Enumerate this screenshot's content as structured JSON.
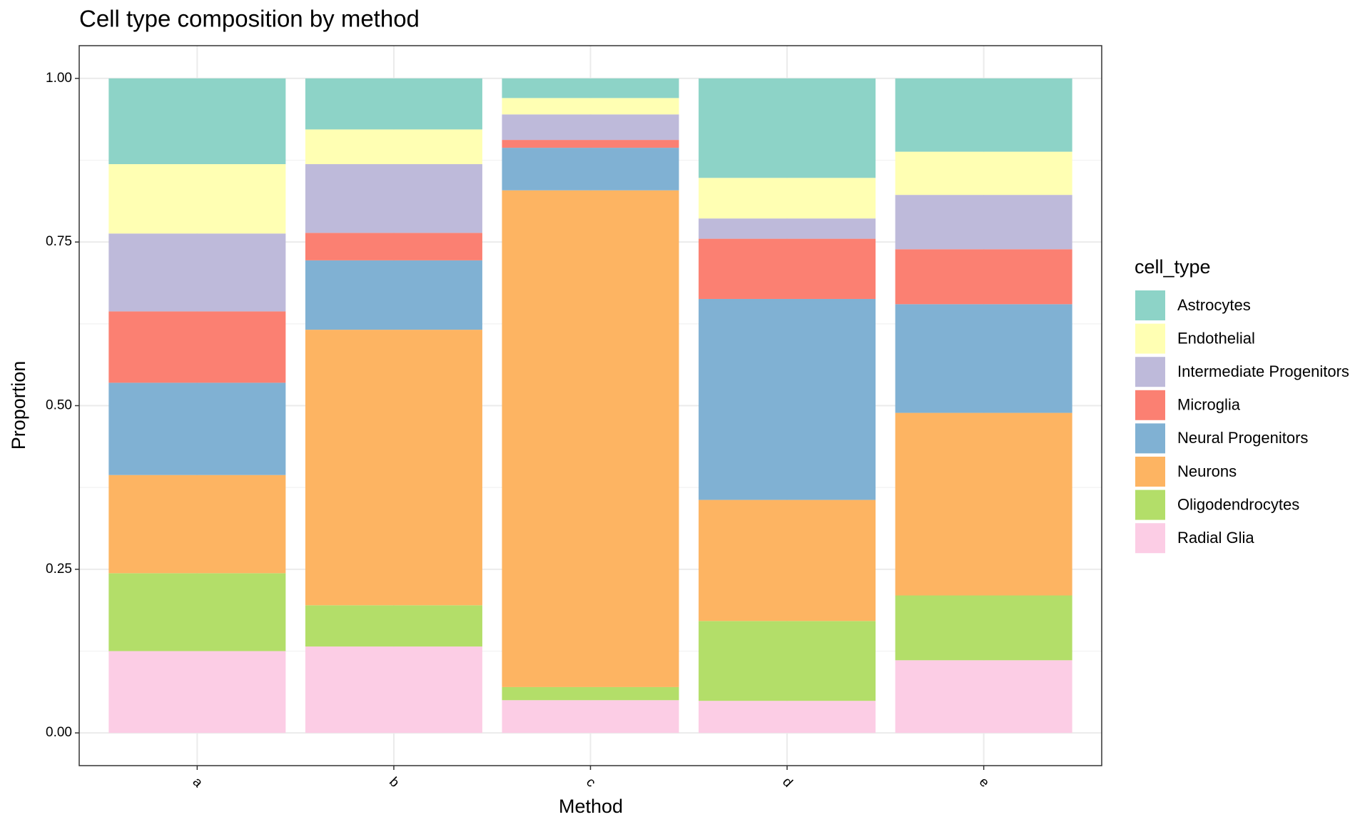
{
  "chart_data": {
    "type": "stacked_bar",
    "title": "Cell type composition by method",
    "x_label": "Method",
    "y_label": "Proportion",
    "legend_title": "cell_type",
    "legend_position": "right",
    "grid": true,
    "categories": [
      "a",
      "b",
      "c",
      "d",
      "e"
    ],
    "ylim": [
      -0.05,
      1.05
    ],
    "yticks": [
      {
        "value": 0,
        "label": "0.00"
      },
      0.25,
      {
        "value": 0.5,
        "label": "0.50"
      },
      0.75,
      {
        "value": 1,
        "label": "1.00"
      }
    ],
    "series": [
      {
        "name": "Astrocytes",
        "color": "#8DD3C7",
        "values": [
          0.131,
          0.078,
          0.03,
          0.152,
          0.112
        ]
      },
      {
        "name": "Endothelial",
        "color": "#FFFFB3",
        "values": [
          0.106,
          0.053,
          0.025,
          0.062,
          0.066
        ]
      },
      {
        "name": "Intermediate Progenitors",
        "color": "#BEBADA",
        "values": [
          0.119,
          0.105,
          0.039,
          0.031,
          0.083
        ]
      },
      {
        "name": "Microglia",
        "color": "#FB8072",
        "values": [
          0.109,
          0.042,
          0.012,
          0.092,
          0.084
        ]
      },
      {
        "name": "Neural Progenitors",
        "color": "#80B1D3",
        "values": [
          0.141,
          0.106,
          0.065,
          0.307,
          0.166
        ]
      },
      {
        "name": "Neurons",
        "color": "#FDB462",
        "values": [
          0.15,
          0.421,
          0.759,
          0.185,
          0.279
        ]
      },
      {
        "name": "Oligodendrocytes",
        "color": "#B3DE69",
        "values": [
          0.119,
          0.063,
          0.02,
          0.122,
          0.099
        ]
      },
      {
        "name": "Radial Glia",
        "color": "#FCCDE5",
        "values": [
          0.125,
          0.132,
          0.05,
          0.049,
          0.111
        ]
      }
    ]
  }
}
